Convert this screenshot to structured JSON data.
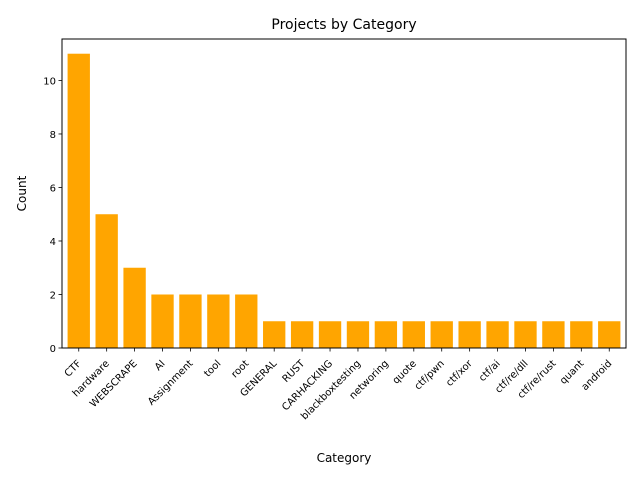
{
  "chart_data": {
    "type": "bar",
    "title": "Projects by Category",
    "xlabel": "Category",
    "ylabel": "Count",
    "categories": [
      "CTF",
      "hardware",
      "WEBSCRAPE",
      "AI",
      "Assignment",
      "tool",
      "root",
      "GENERAL",
      "RUST",
      "CARHACKING",
      "blackboxtesting",
      "networing",
      "quote",
      "ctf/pwn",
      "ctf/xor",
      "ctf/ai",
      "ctf/re/dll",
      "ctf/re/rust",
      "quant",
      "android"
    ],
    "values": [
      11,
      5,
      3,
      2,
      2,
      2,
      2,
      1,
      1,
      1,
      1,
      1,
      1,
      1,
      1,
      1,
      1,
      1,
      1,
      1
    ],
    "ylim": [
      0,
      11.55
    ],
    "yticks": [
      0,
      2,
      4,
      6,
      8,
      10
    ],
    "bar_color": "#FFA500",
    "grid": false,
    "legend": "none"
  }
}
